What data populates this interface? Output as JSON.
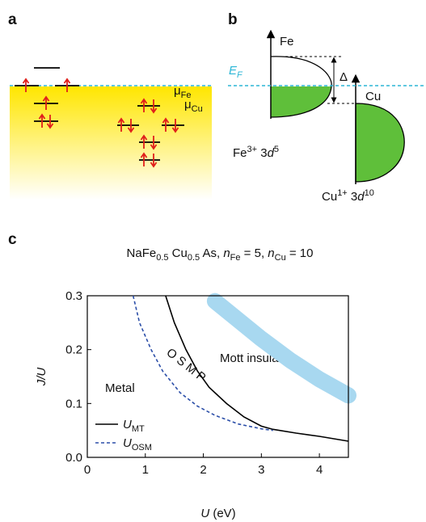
{
  "panel_a": {
    "label": "a",
    "mu_fe": [
      "μ",
      "Fe"
    ],
    "mu_cu": [
      "μ",
      "Cu"
    ]
  },
  "panel_b": {
    "label": "b",
    "fe_axis": "Fe",
    "cu_axis": "Cu",
    "fermi": [
      "E",
      "F"
    ],
    "gap": "Δ",
    "fe_state": [
      "Fe",
      "3+",
      " 3",
      "d",
      "5"
    ],
    "cu_state": [
      "Cu",
      "1+",
      " 3",
      "d",
      "10"
    ]
  },
  "chart_data": {
    "type": "line",
    "panel_label": "c",
    "title": [
      "NaFe",
      "0.5",
      " Cu",
      "0.5",
      " As, ",
      "n",
      "Fe",
      " = 5, ",
      "n",
      "Cu",
      " = 10"
    ],
    "xlabel": [
      "U",
      " (eV)"
    ],
    "ylabel": "J/U",
    "xlim": [
      0,
      4.5
    ],
    "ylim": [
      0,
      0.3
    ],
    "xticks": [
      0,
      1,
      2,
      3,
      4
    ],
    "yticks": [
      {
        "value": 0,
        "label": "0.0"
      },
      0.1,
      0.2,
      0.3
    ],
    "annotations": [
      "Metal",
      "O S M P",
      "Mott insulator"
    ],
    "series": [
      {
        "name": [
          "U",
          "MT"
        ],
        "color": "#000000",
        "dash": false,
        "x": [
          1.35,
          1.5,
          1.7,
          1.9,
          2.1,
          2.4,
          2.7,
          3.0,
          3.2,
          3.6,
          4.0,
          4.5
        ],
        "y": [
          0.3,
          0.25,
          0.2,
          0.16,
          0.13,
          0.1,
          0.075,
          0.058,
          0.052,
          0.045,
          0.039,
          0.03
        ]
      },
      {
        "name": [
          "U",
          "OSM"
        ],
        "color": "#2b4ea8",
        "dash": true,
        "x": [
          0.79,
          0.9,
          1.1,
          1.3,
          1.6,
          1.9,
          2.2,
          2.6,
          3.0,
          3.2
        ],
        "y": [
          0.3,
          0.25,
          0.2,
          0.16,
          0.12,
          0.095,
          0.078,
          0.062,
          0.053,
          0.05
        ]
      }
    ],
    "band": {
      "color": "#a8d8f0",
      "x": [
        2.2,
        2.6,
        3.0,
        3.5,
        4.0,
        4.5
      ],
      "y": [
        0.29,
        0.255,
        0.22,
        0.18,
        0.145,
        0.115
      ]
    }
  }
}
